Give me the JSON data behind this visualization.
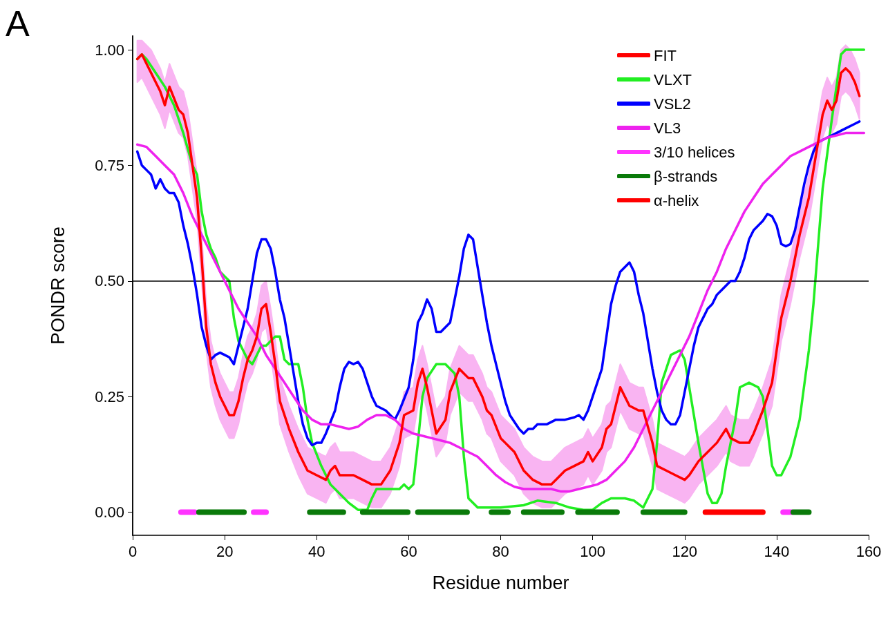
{
  "chart_data": {
    "type": "line",
    "xlabel": "Residue number",
    "ylabel": "PONDR score",
    "annotations": [
      "A"
    ],
    "xlim": [
      0,
      160
    ],
    "xticks": [
      0,
      20,
      40,
      60,
      80,
      100,
      120,
      140,
      160
    ],
    "ylim": [
      -0.05,
      1.03
    ],
    "yticks": [
      {
        "value": 0,
        "label": "0.00"
      },
      {
        "value": 0.25,
        "label": "0.25"
      },
      {
        "value": 0.5,
        "label": "0.50"
      },
      {
        "value": 0.75,
        "label": "0.75"
      },
      {
        "value": 1,
        "label": "1.00"
      }
    ],
    "grid": false,
    "legend": "top right",
    "marker": "none",
    "line_style": "solid",
    "ref_lines": [
      {
        "axis": "y",
        "value": 0.5,
        "color": "#000000"
      }
    ],
    "series": [
      {
        "name": "FIT",
        "color": "#ff0000",
        "x": [
          1,
          2,
          4,
          6,
          7,
          8,
          10,
          11,
          12,
          14,
          15,
          16,
          17,
          18,
          19,
          20,
          21,
          22,
          23,
          24,
          25,
          26,
          27,
          28,
          29,
          30,
          31,
          32,
          34,
          36,
          38,
          40,
          42,
          43,
          44,
          45,
          47,
          48,
          50,
          52,
          54,
          56,
          58,
          59,
          61,
          62,
          63,
          64,
          65,
          66,
          68,
          69,
          71,
          72,
          73,
          74,
          76,
          77,
          78,
          80,
          81,
          83,
          85,
          87,
          89,
          91,
          92,
          94,
          96,
          98,
          99,
          100,
          102,
          103,
          104,
          105,
          106,
          107,
          108,
          110,
          111,
          113,
          114,
          116,
          118,
          120,
          121,
          123,
          125,
          127,
          129,
          130,
          132,
          134,
          135,
          137,
          139,
          140,
          141,
          143,
          145,
          147,
          149,
          150,
          151,
          152,
          153,
          154,
          155,
          156,
          157,
          158
        ],
        "values": [
          0.98,
          0.99,
          0.95,
          0.91,
          0.88,
          0.92,
          0.87,
          0.86,
          0.82,
          0.68,
          0.55,
          0.4,
          0.32,
          0.28,
          0.25,
          0.23,
          0.21,
          0.21,
          0.24,
          0.29,
          0.33,
          0.35,
          0.38,
          0.44,
          0.45,
          0.39,
          0.32,
          0.24,
          0.18,
          0.13,
          0.09,
          0.08,
          0.07,
          0.09,
          0.1,
          0.08,
          0.08,
          0.08,
          0.07,
          0.06,
          0.06,
          0.09,
          0.15,
          0.21,
          0.22,
          0.28,
          0.31,
          0.27,
          0.22,
          0.17,
          0.2,
          0.26,
          0.31,
          0.3,
          0.29,
          0.29,
          0.25,
          0.22,
          0.21,
          0.16,
          0.15,
          0.13,
          0.09,
          0.07,
          0.06,
          0.06,
          0.07,
          0.09,
          0.1,
          0.11,
          0.13,
          0.11,
          0.14,
          0.18,
          0.19,
          0.23,
          0.27,
          0.25,
          0.23,
          0.22,
          0.22,
          0.15,
          0.1,
          0.09,
          0.08,
          0.07,
          0.08,
          0.11,
          0.13,
          0.15,
          0.18,
          0.16,
          0.15,
          0.15,
          0.17,
          0.22,
          0.28,
          0.35,
          0.42,
          0.5,
          0.6,
          0.68,
          0.8,
          0.86,
          0.89,
          0.87,
          0.89,
          0.95,
          0.96,
          0.95,
          0.93,
          0.9
        ],
        "upper": [
          1.02,
          1.02,
          1.0,
          0.96,
          0.93,
          0.97,
          0.92,
          0.91,
          0.87,
          0.73,
          0.6,
          0.45,
          0.37,
          0.33,
          0.3,
          0.28,
          0.26,
          0.26,
          0.29,
          0.34,
          0.38,
          0.4,
          0.43,
          0.49,
          0.5,
          0.44,
          0.37,
          0.29,
          0.23,
          0.18,
          0.14,
          0.13,
          0.12,
          0.14,
          0.15,
          0.13,
          0.13,
          0.13,
          0.12,
          0.11,
          0.11,
          0.14,
          0.2,
          0.26,
          0.27,
          0.33,
          0.36,
          0.32,
          0.27,
          0.22,
          0.25,
          0.31,
          0.36,
          0.35,
          0.34,
          0.34,
          0.3,
          0.27,
          0.26,
          0.21,
          0.2,
          0.18,
          0.14,
          0.12,
          0.11,
          0.11,
          0.12,
          0.14,
          0.15,
          0.16,
          0.18,
          0.16,
          0.19,
          0.23,
          0.24,
          0.28,
          0.32,
          0.3,
          0.28,
          0.27,
          0.27,
          0.2,
          0.15,
          0.14,
          0.13,
          0.12,
          0.13,
          0.16,
          0.18,
          0.2,
          0.23,
          0.21,
          0.2,
          0.2,
          0.22,
          0.27,
          0.33,
          0.4,
          0.47,
          0.55,
          0.65,
          0.73,
          0.85,
          0.91,
          0.94,
          0.92,
          0.94,
          1.0,
          1.01,
          1.0,
          0.98,
          0.95
        ],
        "lower": [
          0.93,
          0.94,
          0.9,
          0.86,
          0.83,
          0.87,
          0.82,
          0.81,
          0.77,
          0.63,
          0.5,
          0.35,
          0.27,
          0.23,
          0.2,
          0.18,
          0.16,
          0.16,
          0.19,
          0.24,
          0.28,
          0.3,
          0.33,
          0.39,
          0.4,
          0.34,
          0.27,
          0.19,
          0.13,
          0.08,
          0.04,
          0.03,
          0.02,
          0.04,
          0.05,
          0.03,
          0.03,
          0.03,
          0.02,
          0.01,
          0.01,
          0.04,
          0.1,
          0.16,
          0.17,
          0.23,
          0.26,
          0.22,
          0.17,
          0.12,
          0.15,
          0.21,
          0.26,
          0.25,
          0.24,
          0.24,
          0.2,
          0.17,
          0.16,
          0.11,
          0.1,
          0.08,
          0.04,
          0.02,
          0.01,
          0.01,
          0.02,
          0.04,
          0.05,
          0.06,
          0.08,
          0.06,
          0.09,
          0.13,
          0.14,
          0.18,
          0.22,
          0.2,
          0.18,
          0.17,
          0.17,
          0.1,
          0.05,
          0.04,
          0.03,
          0.02,
          0.03,
          0.06,
          0.08,
          0.1,
          0.13,
          0.11,
          0.1,
          0.1,
          0.12,
          0.17,
          0.23,
          0.3,
          0.37,
          0.45,
          0.55,
          0.63,
          0.75,
          0.81,
          0.84,
          0.82,
          0.84,
          0.9,
          0.91,
          0.9,
          0.88,
          0.85
        ]
      },
      {
        "name": "VLXT",
        "color": "#22ee22",
        "x": [
          1,
          2,
          3,
          5,
          7,
          9,
          11,
          13,
          14,
          15,
          16,
          17,
          18,
          19,
          20,
          21,
          22,
          23,
          24,
          25,
          26,
          27,
          28,
          29,
          30,
          31,
          32,
          33,
          34,
          36,
          37,
          38,
          39,
          41,
          43,
          45,
          47,
          49,
          51,
          52,
          53,
          56,
          58,
          59,
          60,
          61,
          62,
          63,
          64,
          66,
          68,
          70,
          71,
          72,
          73,
          75,
          80,
          85,
          88,
          92,
          95,
          98,
          100,
          102,
          104,
          107,
          109,
          111,
          113,
          114,
          115,
          117,
          119,
          120,
          121,
          123,
          125,
          126,
          127,
          128,
          129,
          131,
          132,
          134,
          136,
          137,
          138,
          139,
          140,
          141,
          143,
          145,
          147,
          148,
          150,
          152,
          154,
          155,
          159
        ],
        "values": [
          0.98,
          0.99,
          0.98,
          0.95,
          0.92,
          0.88,
          0.82,
          0.75,
          0.73,
          0.65,
          0.6,
          0.57,
          0.55,
          0.52,
          0.51,
          0.5,
          0.42,
          0.37,
          0.35,
          0.33,
          0.32,
          0.34,
          0.36,
          0.36,
          0.37,
          0.38,
          0.38,
          0.33,
          0.32,
          0.32,
          0.27,
          0.2,
          0.15,
          0.1,
          0.06,
          0.04,
          0.02,
          0.005,
          0.005,
          0.03,
          0.05,
          0.05,
          0.05,
          0.06,
          0.05,
          0.06,
          0.15,
          0.25,
          0.29,
          0.32,
          0.32,
          0.3,
          0.25,
          0.12,
          0.03,
          0.01,
          0.01,
          0.015,
          0.025,
          0.02,
          0.01,
          0.005,
          0.005,
          0.02,
          0.03,
          0.03,
          0.025,
          0.01,
          0.05,
          0.15,
          0.28,
          0.34,
          0.35,
          0.33,
          0.27,
          0.15,
          0.04,
          0.02,
          0.02,
          0.04,
          0.1,
          0.2,
          0.27,
          0.28,
          0.27,
          0.25,
          0.18,
          0.1,
          0.08,
          0.08,
          0.12,
          0.2,
          0.35,
          0.45,
          0.7,
          0.85,
          0.99,
          1.0,
          1.0
        ]
      },
      {
        "name": "VSL2",
        "color": "#0000ff",
        "x": [
          1,
          2,
          3,
          4,
          5,
          6,
          7,
          8,
          9,
          10,
          11,
          12,
          13,
          14,
          15,
          16,
          17,
          18,
          19,
          20,
          21,
          22,
          23,
          24,
          25,
          26,
          27,
          28,
          29,
          30,
          31,
          32,
          33,
          34,
          35,
          36,
          37,
          38,
          39,
          40,
          41,
          42,
          44,
          45,
          46,
          47,
          48,
          49,
          50,
          51,
          52,
          53,
          55,
          56,
          57,
          58,
          60,
          61,
          62,
          63,
          64,
          65,
          66,
          67,
          68,
          69,
          70,
          71,
          72,
          73,
          74,
          75,
          76,
          77,
          78,
          79,
          80,
          81,
          82,
          84,
          85,
          86,
          87,
          88,
          90,
          92,
          94,
          96,
          97,
          98,
          99,
          100,
          102,
          103,
          104,
          105,
          106,
          107,
          108,
          109,
          110,
          111,
          112,
          113,
          114,
          115,
          116,
          117,
          118,
          119,
          120,
          121,
          122,
          123,
          124,
          125,
          126,
          127,
          128,
          129,
          130,
          131,
          132,
          133,
          134,
          135,
          136,
          137,
          138,
          139,
          140,
          141,
          142,
          143,
          144,
          145,
          146,
          147,
          148,
          149,
          151,
          153,
          155,
          157,
          158
        ],
        "values": [
          0.78,
          0.75,
          0.74,
          0.73,
          0.7,
          0.72,
          0.7,
          0.69,
          0.69,
          0.67,
          0.62,
          0.58,
          0.53,
          0.47,
          0.4,
          0.36,
          0.33,
          0.34,
          0.345,
          0.34,
          0.335,
          0.32,
          0.36,
          0.4,
          0.44,
          0.5,
          0.56,
          0.59,
          0.59,
          0.57,
          0.52,
          0.46,
          0.42,
          0.36,
          0.3,
          0.24,
          0.19,
          0.16,
          0.145,
          0.15,
          0.15,
          0.17,
          0.22,
          0.27,
          0.31,
          0.325,
          0.32,
          0.325,
          0.31,
          0.28,
          0.25,
          0.23,
          0.22,
          0.21,
          0.2,
          0.22,
          0.27,
          0.33,
          0.41,
          0.43,
          0.46,
          0.44,
          0.39,
          0.39,
          0.4,
          0.41,
          0.46,
          0.51,
          0.57,
          0.6,
          0.59,
          0.53,
          0.47,
          0.41,
          0.36,
          0.32,
          0.28,
          0.24,
          0.21,
          0.18,
          0.17,
          0.18,
          0.18,
          0.19,
          0.19,
          0.2,
          0.2,
          0.205,
          0.21,
          0.2,
          0.22,
          0.25,
          0.31,
          0.38,
          0.45,
          0.49,
          0.52,
          0.53,
          0.54,
          0.52,
          0.47,
          0.43,
          0.37,
          0.31,
          0.26,
          0.22,
          0.2,
          0.19,
          0.19,
          0.21,
          0.26,
          0.31,
          0.36,
          0.4,
          0.42,
          0.44,
          0.45,
          0.47,
          0.48,
          0.49,
          0.5,
          0.5,
          0.52,
          0.55,
          0.59,
          0.61,
          0.62,
          0.63,
          0.645,
          0.64,
          0.62,
          0.58,
          0.575,
          0.58,
          0.61,
          0.66,
          0.71,
          0.75,
          0.78,
          0.8,
          0.81,
          0.82,
          0.83,
          0.84,
          0.845
        ]
      },
      {
        "name": "VL3",
        "color": "#ee22ee",
        "x": [
          1,
          3,
          5,
          7,
          9,
          11,
          13,
          15,
          17,
          19,
          21,
          23,
          25,
          27,
          29,
          31,
          33,
          35,
          37,
          39,
          41,
          43,
          45,
          47,
          49,
          51,
          53,
          55,
          57,
          59,
          61,
          63,
          65,
          67,
          69,
          71,
          73,
          75,
          77,
          79,
          81,
          83,
          85,
          87,
          89,
          91,
          93,
          95,
          97,
          99,
          101,
          103,
          105,
          107,
          109,
          111,
          113,
          115,
          117,
          119,
          121,
          123,
          125,
          127,
          129,
          131,
          133,
          135,
          137,
          139,
          141,
          143,
          145,
          147,
          149,
          151,
          153,
          155,
          157,
          159
        ],
        "values": [
          0.795,
          0.79,
          0.77,
          0.75,
          0.73,
          0.69,
          0.64,
          0.6,
          0.56,
          0.52,
          0.48,
          0.44,
          0.41,
          0.38,
          0.34,
          0.31,
          0.28,
          0.25,
          0.22,
          0.2,
          0.19,
          0.19,
          0.185,
          0.18,
          0.185,
          0.2,
          0.21,
          0.21,
          0.2,
          0.18,
          0.17,
          0.165,
          0.16,
          0.155,
          0.15,
          0.14,
          0.13,
          0.12,
          0.1,
          0.08,
          0.065,
          0.055,
          0.05,
          0.05,
          0.05,
          0.05,
          0.045,
          0.045,
          0.05,
          0.055,
          0.06,
          0.07,
          0.09,
          0.11,
          0.14,
          0.18,
          0.22,
          0.26,
          0.3,
          0.34,
          0.38,
          0.43,
          0.48,
          0.52,
          0.57,
          0.61,
          0.65,
          0.68,
          0.71,
          0.73,
          0.75,
          0.77,
          0.78,
          0.79,
          0.8,
          0.81,
          0.815,
          0.82,
          0.82,
          0.82
        ]
      },
      {
        "name": "3/10 helices",
        "color": "#ff33ff",
        "x": [
          10.5,
          13.5,
          20,
          26.3,
          29,
          35,
          141.4,
          143.2
        ],
        "values": [
          0,
          0,
          null,
          0,
          0,
          null,
          0,
          0
        ]
      },
      {
        "name": "β-strands",
        "color": "#0a7a0a",
        "x": [
          14.4,
          24.2,
          30,
          38.5,
          45.8,
          48,
          50,
          59.8,
          61,
          62,
          72.7,
          75,
          78,
          81.6,
          83,
          85,
          93.3,
          95,
          96.8,
          105.3,
          108,
          111,
          120,
          130,
          143.6,
          147
        ],
        "values": [
          0,
          0,
          null,
          0,
          0,
          null,
          0,
          0,
          null,
          0,
          0,
          null,
          0,
          0,
          null,
          0,
          0,
          null,
          0,
          0,
          null,
          0,
          0,
          null,
          0,
          0
        ]
      },
      {
        "name": "α-helix",
        "color": "#ff0000",
        "x": [
          124.5,
          137
        ],
        "values": [
          0,
          0
        ]
      }
    ]
  }
}
